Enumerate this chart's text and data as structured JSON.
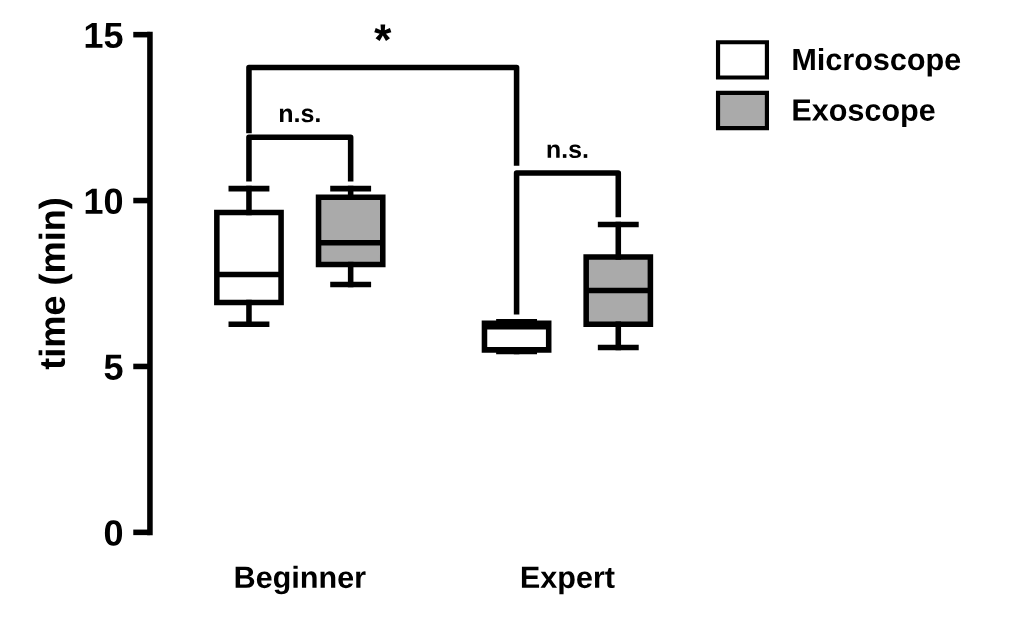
{
  "chart_data": {
    "type": "box",
    "ylabel": "time (min)",
    "categories": [
      "Beginner",
      "Expert"
    ],
    "ylim": [
      0,
      15
    ],
    "yticks": [
      0,
      5,
      10,
      15
    ],
    "grid": false,
    "legend": "top right",
    "series": [
      {
        "name": "Microscope",
        "color": "#ffffff",
        "boxes": [
          {
            "low": 6.27,
            "q1": 6.93,
            "median": 7.77,
            "q3": 9.64,
            "high": 10.36
          },
          {
            "low": 5.45,
            "q1": 5.5,
            "median": 6.2,
            "q3": 6.3,
            "high": 6.35
          }
        ]
      },
      {
        "name": "Exoscope",
        "color": "#aaaaaa",
        "boxes": [
          {
            "low": 7.47,
            "q1": 8.07,
            "median": 8.73,
            "q3": 10.1,
            "high": 10.36
          },
          {
            "low": 5.57,
            "q1": 6.27,
            "median": 7.29,
            "q3": 8.3,
            "high": 9.28
          }
        ]
      }
    ],
    "annotations": [
      "*",
      "n.s.",
      "n.s."
    ]
  }
}
